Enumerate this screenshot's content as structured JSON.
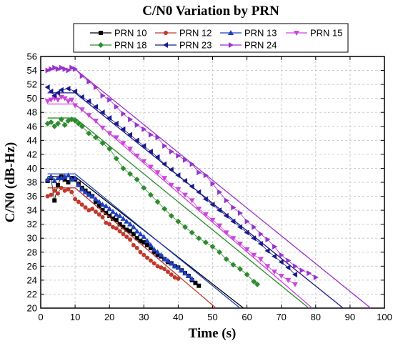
{
  "chart_data": {
    "type": "line",
    "title": "C/N0 Variation by PRN",
    "xlabel": "Time (s)",
    "ylabel": "C/N0 (dB-Hz)",
    "xlim": [
      0,
      100
    ],
    "ylim": [
      20,
      56
    ],
    "x_ticks": [
      "0",
      "10",
      "20",
      "30",
      "40",
      "50",
      "60",
      "70",
      "80",
      "90",
      "100"
    ],
    "y_ticks": [
      "20",
      "22",
      "24",
      "26",
      "28",
      "30",
      "32",
      "34",
      "36",
      "38",
      "40",
      "42",
      "44",
      "46",
      "48",
      "50",
      "52",
      "54",
      "56"
    ],
    "grid": true,
    "legend_position": "top",
    "series": [
      {
        "name": "PRN 10",
        "color": "#000000",
        "marker": "square",
        "x": [
          2,
          3,
          4,
          5,
          6,
          7,
          8,
          9,
          10,
          11,
          12,
          13,
          14,
          15,
          16,
          17,
          18,
          19,
          20,
          21,
          22,
          23,
          24,
          25,
          26,
          27,
          28,
          29,
          30,
          31,
          32,
          33,
          34,
          35,
          36,
          37,
          38,
          39,
          40,
          41,
          42,
          43,
          44,
          45,
          46
        ],
        "y": [
          38.2,
          38.6,
          35.4,
          37.6,
          38.8,
          38.4,
          38.0,
          38.6,
          38.4,
          37.8,
          37.2,
          36.8,
          36.4,
          36.0,
          35.2,
          34.6,
          34.0,
          33.6,
          33.2,
          32.8,
          32.6,
          32.0,
          31.6,
          31.2,
          31.0,
          30.6,
          30.0,
          29.6,
          29.4,
          29.0,
          28.6,
          28.0,
          27.6,
          27.4,
          27.0,
          26.6,
          26.4,
          26.0,
          25.8,
          25.4,
          25.0,
          24.6,
          24.0,
          23.6,
          23.2
        ],
        "fit_x": [
          2,
          10,
          59
        ],
        "fit_y": [
          38.8,
          38.8,
          20.0
        ]
      },
      {
        "name": "PRN 12",
        "color": "#c0392b",
        "marker": "circle",
        "x": [
          2,
          3,
          4,
          5,
          6,
          7,
          8,
          9,
          10,
          11,
          12,
          13,
          14,
          15,
          16,
          17,
          18,
          19,
          20,
          21,
          22,
          23,
          24,
          25,
          26,
          27,
          28,
          29,
          30,
          31,
          32,
          33,
          34,
          35,
          36,
          37,
          38,
          39,
          40
        ],
        "y": [
          36.0,
          36.2,
          36.8,
          36.4,
          37.2,
          36.8,
          37.0,
          36.6,
          35.6,
          35.2,
          34.8,
          34.4,
          34.0,
          34.2,
          33.8,
          33.4,
          33.0,
          32.2,
          32.0,
          31.6,
          31.4,
          31.0,
          30.6,
          30.2,
          29.8,
          29.0,
          28.6,
          28.0,
          27.6,
          27.2,
          26.8,
          26.4,
          26.0,
          25.8,
          25.6,
          25.2,
          24.8,
          24.4,
          24.2
        ],
        "fit_x": [
          2,
          10,
          51
        ],
        "fit_y": [
          37.2,
          37.2,
          20.0
        ]
      },
      {
        "name": "PRN 13",
        "color": "#1f3fbf",
        "marker": "triangle-up",
        "x": [
          2,
          3,
          4,
          5,
          6,
          7,
          8,
          9,
          10,
          11,
          12,
          13,
          14,
          15,
          16,
          17,
          18,
          19,
          20,
          21,
          22,
          23,
          24,
          25,
          26,
          27,
          28,
          29,
          30,
          31,
          32,
          33,
          34,
          35,
          36,
          37,
          38,
          39,
          40,
          41,
          42,
          43,
          44
        ],
        "y": [
          38.4,
          38.8,
          38.2,
          38.6,
          38.6,
          38.8,
          39.0,
          38.4,
          38.6,
          37.6,
          37.0,
          36.6,
          36.2,
          36.0,
          35.6,
          35.2,
          34.8,
          34.6,
          34.2,
          33.8,
          33.4,
          33.2,
          32.8,
          32.4,
          32.0,
          31.6,
          31.0,
          30.6,
          30.2,
          29.6,
          29.0,
          28.4,
          28.0,
          27.6,
          27.0,
          26.8,
          26.4,
          26.0,
          25.8,
          25.4,
          25.0,
          24.6,
          24.2
        ],
        "fit_x": [
          2,
          10,
          58
        ],
        "fit_y": [
          39.2,
          39.2,
          20.0
        ]
      },
      {
        "name": "PRN 15",
        "color": "#cc44dd",
        "marker": "triangle-down",
        "x": [
          2,
          3,
          4,
          5,
          6,
          7,
          8,
          9,
          10,
          12,
          14,
          16,
          18,
          20,
          22,
          24,
          26,
          28,
          30,
          32,
          34,
          36,
          38,
          40,
          42,
          44,
          46,
          48,
          50,
          52,
          54,
          56,
          58,
          60,
          62,
          64,
          66,
          68,
          70,
          72,
          74
        ],
        "y": [
          49.6,
          49.8,
          50.0,
          49.8,
          50.2,
          50.0,
          49.6,
          49.8,
          49.0,
          48.4,
          47.6,
          46.8,
          45.8,
          45.0,
          44.4,
          43.6,
          42.8,
          41.8,
          41.0,
          40.2,
          39.4,
          38.6,
          37.6,
          37.0,
          36.2,
          35.4,
          34.2,
          33.4,
          32.6,
          31.8,
          30.8,
          30.0,
          29.2,
          28.4,
          27.6,
          27.0,
          26.0,
          25.2,
          24.6,
          24.0,
          23.4
        ],
        "fit_x": [
          2,
          10,
          79
        ],
        "fit_y": [
          49.2,
          49.2,
          20.0
        ]
      },
      {
        "name": "PRN 18",
        "color": "#2e8b2e",
        "marker": "diamond",
        "x": [
          2,
          3,
          4,
          5,
          6,
          7,
          8,
          9,
          10,
          11,
          12,
          14,
          16,
          18,
          20,
          22,
          24,
          26,
          28,
          30,
          32,
          34,
          36,
          38,
          40,
          42,
          44,
          46,
          48,
          50,
          52,
          54,
          56,
          58,
          60,
          62,
          63
        ],
        "y": [
          46.4,
          46.6,
          46.0,
          46.4,
          47.0,
          46.2,
          46.8,
          47.0,
          46.8,
          46.4,
          46.0,
          45.0,
          44.4,
          43.6,
          42.8,
          41.4,
          40.0,
          39.2,
          38.4,
          37.2,
          36.2,
          35.2,
          34.2,
          33.2,
          32.4,
          31.6,
          30.8,
          30.0,
          29.4,
          28.8,
          28.0,
          27.0,
          26.2,
          25.6,
          24.8,
          23.8,
          23.4
        ],
        "fit_x": [
          2,
          10,
          78
        ],
        "fit_y": [
          47.2,
          47.2,
          20.0
        ]
      },
      {
        "name": "PRN 23",
        "color": "#1a1a8c",
        "marker": "triangle-left",
        "x": [
          2,
          3,
          4,
          5,
          6,
          8,
          10,
          12,
          14,
          16,
          18,
          20,
          22,
          24,
          26,
          28,
          30,
          32,
          34,
          36,
          38,
          40,
          42,
          44,
          46,
          48,
          50,
          52,
          54,
          56,
          58,
          60,
          62,
          64,
          66,
          68,
          70,
          72,
          74
        ],
        "y": [
          51.6,
          51.0,
          50.4,
          50.8,
          51.2,
          51.4,
          51.0,
          50.2,
          49.6,
          48.8,
          48.0,
          47.2,
          46.4,
          45.6,
          44.8,
          44.0,
          43.2,
          42.4,
          41.6,
          40.6,
          39.8,
          39.0,
          38.2,
          37.4,
          36.6,
          35.6,
          34.8,
          34.0,
          33.2,
          32.4,
          31.6,
          30.8,
          30.0,
          29.2,
          28.2,
          27.4,
          26.6,
          25.8,
          24.8
        ],
        "fit_x": [
          2,
          10,
          88
        ],
        "fit_y": [
          50.8,
          50.8,
          20.0
        ]
      },
      {
        "name": "PRN 24",
        "color": "#9932cc",
        "marker": "triangle-right",
        "x": [
          2,
          3,
          4,
          5,
          6,
          7,
          8,
          9,
          10,
          12,
          14,
          16,
          18,
          20,
          22,
          24,
          26,
          28,
          30,
          32,
          34,
          36,
          38,
          40,
          42,
          44,
          46,
          48,
          50,
          52,
          54,
          56,
          58,
          60,
          62,
          64,
          66,
          68,
          70,
          72,
          74,
          76,
          78,
          80
        ],
        "y": [
          54.0,
          54.2,
          54.4,
          54.2,
          54.4,
          54.2,
          54.0,
          54.4,
          54.2,
          53.2,
          52.4,
          51.6,
          50.4,
          49.8,
          48.8,
          47.8,
          47.0,
          46.2,
          45.6,
          44.8,
          44.4,
          43.2,
          42.4,
          41.8,
          41.2,
          40.6,
          39.4,
          39.0,
          37.8,
          36.6,
          35.4,
          34.4,
          33.6,
          32.4,
          31.6,
          30.6,
          29.8,
          28.8,
          27.6,
          26.8,
          26.0,
          25.4,
          25.0,
          24.4
        ],
        "fit_x": [
          2,
          10,
          96
        ],
        "fit_y": [
          54.2,
          54.2,
          20.0
        ]
      }
    ]
  }
}
